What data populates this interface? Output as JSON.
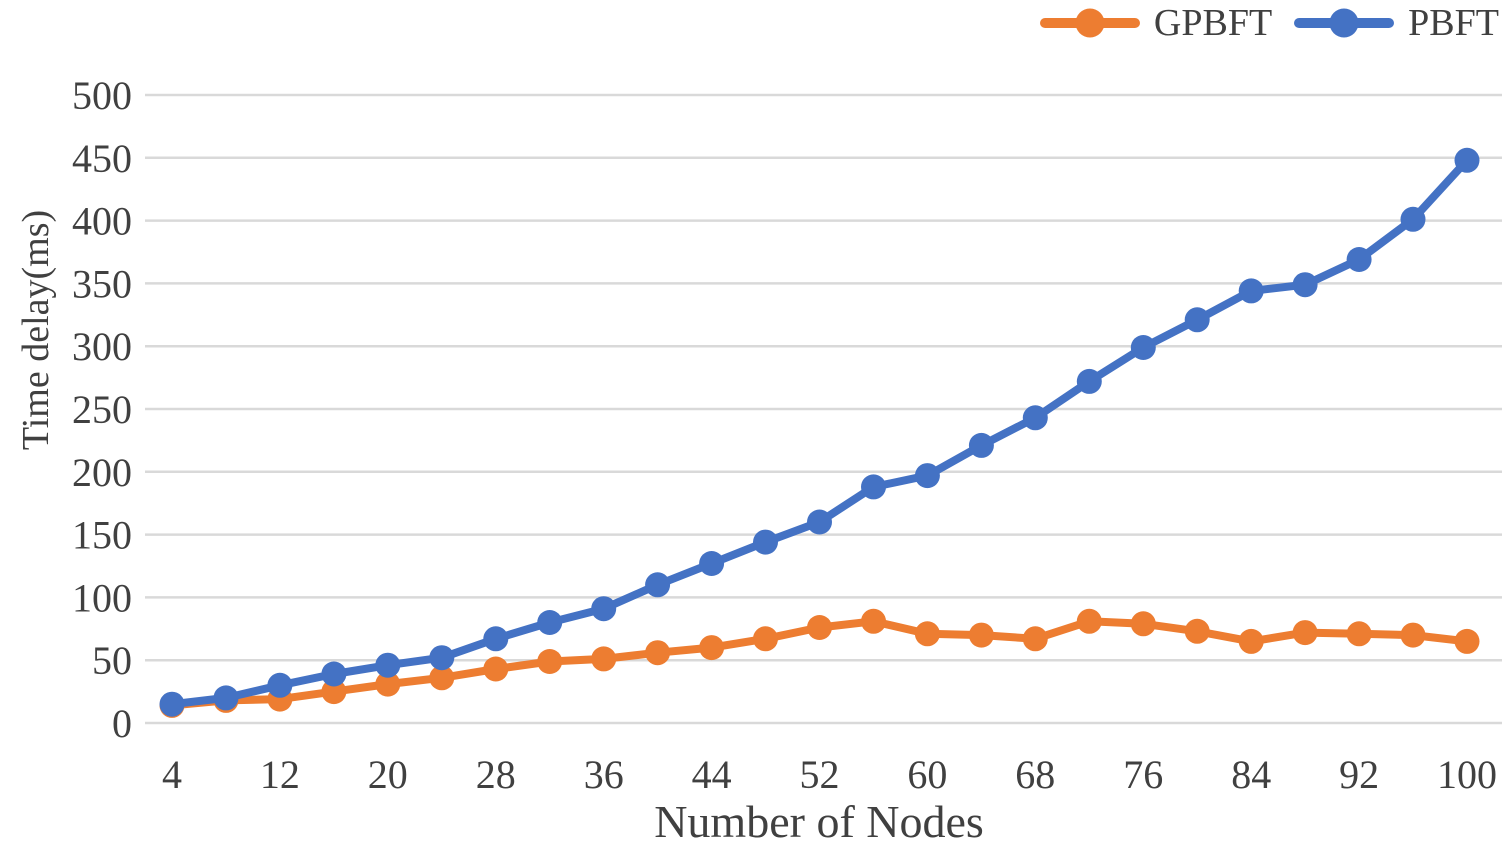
{
  "chart_data": {
    "type": "line",
    "title": "",
    "xlabel": "Number of Nodes",
    "ylabel": "Time delay(ms)",
    "x": [
      4,
      8,
      12,
      16,
      20,
      24,
      28,
      32,
      36,
      40,
      44,
      48,
      52,
      56,
      60,
      64,
      68,
      72,
      76,
      80,
      84,
      88,
      92,
      96,
      100
    ],
    "x_tick_labels": [
      "4",
      "12",
      "20",
      "28",
      "36",
      "44",
      "52",
      "60",
      "68",
      "76",
      "84",
      "92",
      "100"
    ],
    "x_tick_values": [
      4,
      12,
      20,
      28,
      36,
      44,
      52,
      60,
      68,
      76,
      84,
      92,
      100
    ],
    "y_ticks": [
      "0",
      "50",
      "100",
      "150",
      "200",
      "250",
      "300",
      "350",
      "400",
      "450",
      "500"
    ],
    "y_tick_values": [
      0,
      50,
      100,
      150,
      200,
      250,
      300,
      350,
      400,
      450,
      500
    ],
    "xlim": [
      4,
      100
    ],
    "ylim": [
      0,
      500
    ],
    "grid": "horizontal",
    "legend_position": "top-right",
    "series": [
      {
        "name": "GPBFT",
        "color": "#ED7D31",
        "values": [
          14,
          18,
          19,
          25,
          31,
          36,
          43,
          49,
          51,
          56,
          60,
          67,
          76,
          81,
          71,
          70,
          67,
          81,
          79,
          73,
          65,
          72,
          71,
          70,
          65
        ]
      },
      {
        "name": "PBFT",
        "color": "#4472C4",
        "values": [
          15,
          20,
          30,
          39,
          46,
          52,
          67,
          80,
          91,
          110,
          127,
          144,
          160,
          188,
          197,
          221,
          243,
          272,
          299,
          321,
          344,
          349,
          369,
          401,
          448
        ]
      }
    ],
    "colors": {
      "gridline": "#D9D9D9",
      "text": "#404040"
    }
  }
}
